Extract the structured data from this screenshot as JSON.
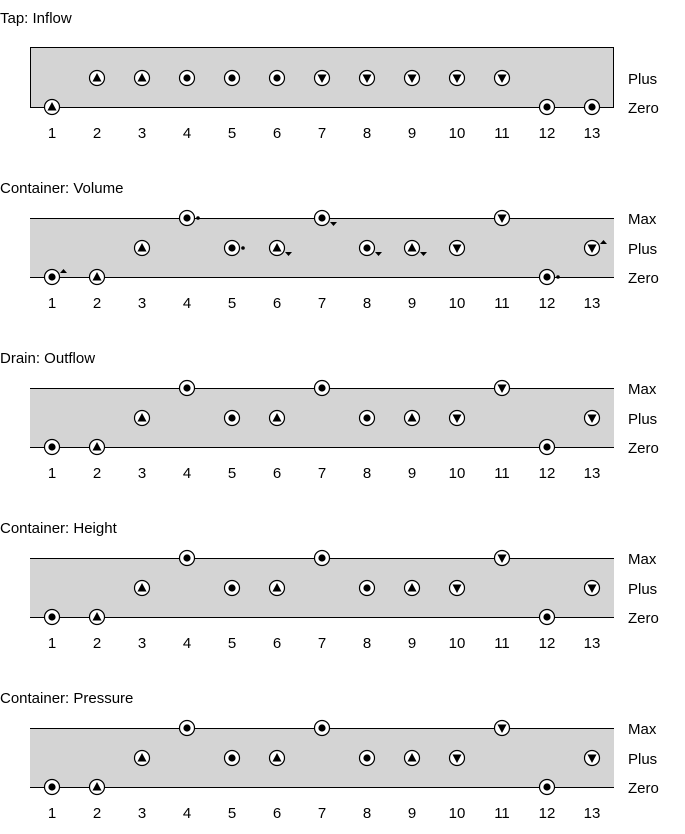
{
  "x_values": [
    "1",
    "2",
    "3",
    "4",
    "5",
    "6",
    "7",
    "8",
    "9",
    "10",
    "11",
    "12",
    "13"
  ],
  "panels": [
    {
      "title": "Tap: Inflow",
      "levels": [
        "Plus",
        "Zero"
      ],
      "states": [
        {
          "level": "Zero",
          "dir": "up"
        },
        {
          "level": "Plus",
          "dir": "up"
        },
        {
          "level": "Plus",
          "dir": "up"
        },
        {
          "level": "Plus",
          "dir": "steady"
        },
        {
          "level": "Plus",
          "dir": "steady"
        },
        {
          "level": "Plus",
          "dir": "steady"
        },
        {
          "level": "Plus",
          "dir": "down"
        },
        {
          "level": "Plus",
          "dir": "down"
        },
        {
          "level": "Plus",
          "dir": "down"
        },
        {
          "level": "Plus",
          "dir": "down"
        },
        {
          "level": "Plus",
          "dir": "down"
        },
        {
          "level": "Zero",
          "dir": "steady"
        },
        {
          "level": "Zero",
          "dir": "steady"
        }
      ]
    },
    {
      "title": "Container: Volume",
      "levels": [
        "Max",
        "Plus",
        "Zero"
      ],
      "states": [
        {
          "level": "Zero",
          "dir": "steady",
          "deriv2": "up"
        },
        {
          "level": "Zero",
          "dir": "up"
        },
        {
          "level": "Plus",
          "dir": "up"
        },
        {
          "level": "Max",
          "dir": "steady",
          "deriv2": "steady"
        },
        {
          "level": "Plus",
          "dir": "steady",
          "deriv2": "steady"
        },
        {
          "level": "Plus",
          "dir": "up",
          "deriv2": "down"
        },
        {
          "level": "Max",
          "dir": "steady",
          "deriv2": "down"
        },
        {
          "level": "Plus",
          "dir": "steady",
          "deriv2": "down"
        },
        {
          "level": "Plus",
          "dir": "up",
          "deriv2": "down"
        },
        {
          "level": "Plus",
          "dir": "down"
        },
        {
          "level": "Max",
          "dir": "down"
        },
        {
          "level": "Zero",
          "dir": "steady",
          "deriv2": "steady"
        },
        {
          "level": "Plus",
          "dir": "down",
          "deriv2": "up"
        }
      ]
    },
    {
      "title": "Drain: Outflow",
      "levels": [
        "Max",
        "Plus",
        "Zero"
      ],
      "states": [
        {
          "level": "Zero",
          "dir": "steady"
        },
        {
          "level": "Zero",
          "dir": "up"
        },
        {
          "level": "Plus",
          "dir": "up"
        },
        {
          "level": "Max",
          "dir": "steady"
        },
        {
          "level": "Plus",
          "dir": "steady"
        },
        {
          "level": "Plus",
          "dir": "up"
        },
        {
          "level": "Max",
          "dir": "steady"
        },
        {
          "level": "Plus",
          "dir": "steady"
        },
        {
          "level": "Plus",
          "dir": "up"
        },
        {
          "level": "Plus",
          "dir": "down"
        },
        {
          "level": "Max",
          "dir": "down"
        },
        {
          "level": "Zero",
          "dir": "steady"
        },
        {
          "level": "Plus",
          "dir": "down"
        }
      ]
    },
    {
      "title": "Container: Height",
      "levels": [
        "Max",
        "Plus",
        "Zero"
      ],
      "states": [
        {
          "level": "Zero",
          "dir": "steady"
        },
        {
          "level": "Zero",
          "dir": "up"
        },
        {
          "level": "Plus",
          "dir": "up"
        },
        {
          "level": "Max",
          "dir": "steady"
        },
        {
          "level": "Plus",
          "dir": "steady"
        },
        {
          "level": "Plus",
          "dir": "up"
        },
        {
          "level": "Max",
          "dir": "steady"
        },
        {
          "level": "Plus",
          "dir": "steady"
        },
        {
          "level": "Plus",
          "dir": "up"
        },
        {
          "level": "Plus",
          "dir": "down"
        },
        {
          "level": "Max",
          "dir": "down"
        },
        {
          "level": "Zero",
          "dir": "steady"
        },
        {
          "level": "Plus",
          "dir": "down"
        }
      ]
    },
    {
      "title": "Container: Pressure",
      "levels": [
        "Max",
        "Plus",
        "Zero"
      ],
      "states": [
        {
          "level": "Zero",
          "dir": "steady"
        },
        {
          "level": "Zero",
          "dir": "up"
        },
        {
          "level": "Plus",
          "dir": "up"
        },
        {
          "level": "Max",
          "dir": "steady"
        },
        {
          "level": "Plus",
          "dir": "steady"
        },
        {
          "level": "Plus",
          "dir": "up"
        },
        {
          "level": "Max",
          "dir": "steady"
        },
        {
          "level": "Plus",
          "dir": "steady"
        },
        {
          "level": "Plus",
          "dir": "up"
        },
        {
          "level": "Plus",
          "dir": "down"
        },
        {
          "level": "Max",
          "dir": "down"
        },
        {
          "level": "Zero",
          "dir": "steady"
        },
        {
          "level": "Plus",
          "dir": "down"
        }
      ]
    }
  ],
  "colors": {
    "band": "#d4d4d4",
    "line": "#000000",
    "marker_fill": "#ffffff",
    "glyph": "#000000"
  }
}
